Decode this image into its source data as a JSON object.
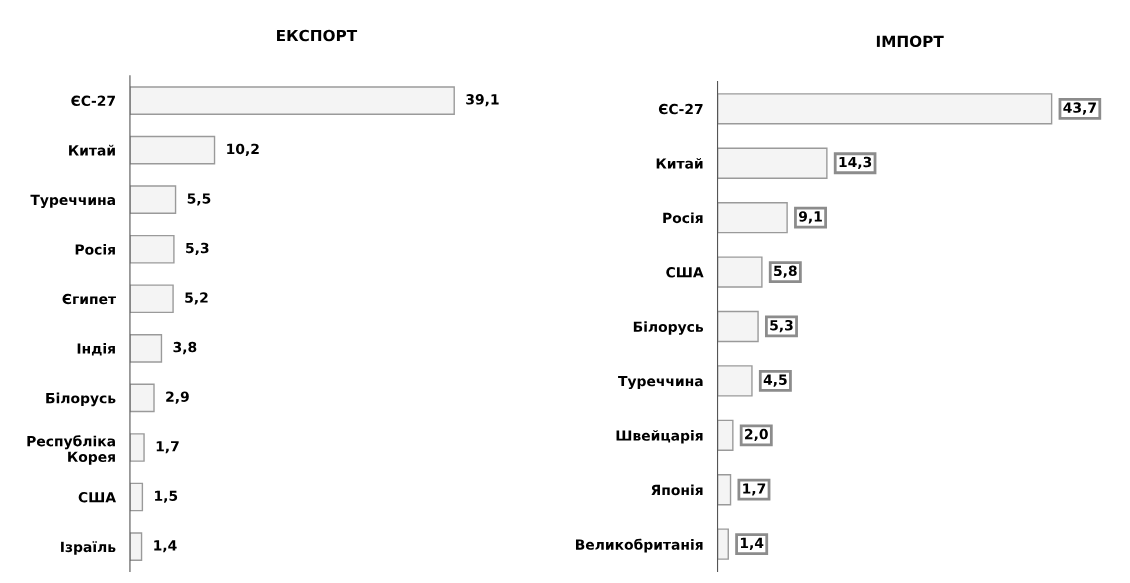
{
  "chart_data": [
    {
      "type": "bar",
      "orientation": "horizontal",
      "title": "ЕКСПОРТ",
      "categories": [
        "ЄС-27",
        "Китай",
        "Туреччина",
        "Росія",
        "Єгипет",
        "Індія",
        "Білорусь",
        "Республіка\nКорея",
        "США",
        "Ізраїль"
      ],
      "series": [
        {
          "color": "#f4f4f4",
          "values": [
            39.1,
            10.2,
            5.5,
            5.3,
            5.2,
            3.8,
            2.9,
            1.7,
            1.5,
            1.4
          ],
          "value_labels": [
            "39,1",
            "10,2",
            "5,5",
            "5,3",
            "5,2",
            "3,8",
            "2,9",
            "1,7",
            "1,5",
            "1,4"
          ]
        }
      ],
      "tick_labels": "y",
      "grid": false,
      "legend": false
    },
    {
      "type": "bar",
      "orientation": "horizontal",
      "title": "ІМПОРТ",
      "categories": [
        "ЄС-27",
        "Китай",
        "Росія",
        "США",
        "Білорусь",
        "Туреччина",
        "Швейцарія",
        "Японія",
        "Великобританія"
      ],
      "series": [
        {
          "color": "#f4f4f4",
          "values": [
            43.7,
            14.3,
            9.1,
            5.8,
            5.3,
            4.5,
            2.0,
            1.7,
            1.4
          ],
          "value_labels": [
            "43,7",
            "14,3",
            "9,1",
            "5,8",
            "5,3",
            "4,5",
            "2,0",
            "1,7",
            "1,4"
          ]
        }
      ],
      "tick_labels": "y",
      "grid": false,
      "legend": false
    }
  ]
}
